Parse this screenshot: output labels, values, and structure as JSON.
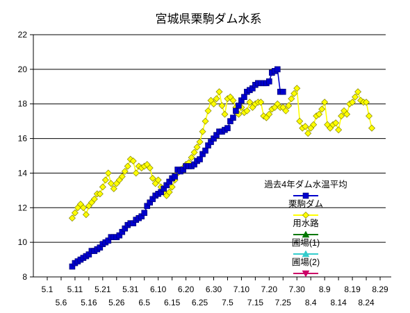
{
  "chart_data": {
    "type": "line",
    "title": "宮城県栗駒ダム水系",
    "xlabel": "",
    "ylabel": "",
    "ylim": [
      8,
      22
    ],
    "yticks": [
      8,
      10,
      12,
      14,
      16,
      18,
      20,
      22
    ],
    "grid": "horizontal",
    "legend_position": "right",
    "x_tick_labels_upper": [
      "5.1",
      "5.11",
      "5.21",
      "5.31",
      "6.10",
      "6.20",
      "6.30",
      "7.10",
      "7.20",
      "7.30",
      "8.9",
      "8.19",
      "8.29"
    ],
    "x_tick_labels_lower": [
      "5.6",
      "5.16",
      "5.26",
      "6.5",
      "6.15",
      "6.25",
      "7.5",
      "7.15",
      "7.25",
      "8.4",
      "8.14",
      "8.24"
    ],
    "x_day_range": [
      0,
      122
    ],
    "colors": {
      "過去4年ダム水温平均": "#0000cc",
      "栗駒ダム": "#ffff00",
      "用水路": "#007700",
      "圃場(1)": "#33cccc",
      "圃場(2)": "#cc0066"
    },
    "series": [
      {
        "name": "過去4年ダム水温平均",
        "marker": "square",
        "points": [
          [
            9,
            8.6
          ],
          [
            10,
            8.8
          ],
          [
            11,
            8.9
          ],
          [
            12,
            9.0
          ],
          [
            13,
            9.1
          ],
          [
            14,
            9.2
          ],
          [
            15,
            9.3
          ],
          [
            16,
            9.5
          ],
          [
            17,
            9.5
          ],
          [
            18,
            9.6
          ],
          [
            19,
            9.7
          ],
          [
            20,
            9.9
          ],
          [
            21,
            10.0
          ],
          [
            22,
            10.1
          ],
          [
            23,
            10.3
          ],
          [
            24,
            10.3
          ],
          [
            25,
            10.3
          ],
          [
            26,
            10.4
          ],
          [
            27,
            10.6
          ],
          [
            28,
            10.8
          ],
          [
            29,
            11.0
          ],
          [
            30,
            11.1
          ],
          [
            31,
            11.1
          ],
          [
            32,
            11.3
          ],
          [
            33,
            11.4
          ],
          [
            34,
            11.5
          ],
          [
            35,
            11.7
          ],
          [
            36,
            12.1
          ],
          [
            37,
            12.3
          ],
          [
            38,
            12.5
          ],
          [
            39,
            12.7
          ],
          [
            40,
            12.8
          ],
          [
            41,
            12.9
          ],
          [
            42,
            13.1
          ],
          [
            43,
            13.3
          ],
          [
            44,
            13.5
          ],
          [
            45,
            13.7
          ],
          [
            46,
            13.8
          ],
          [
            47,
            14.2
          ],
          [
            48,
            14.1
          ],
          [
            49,
            14.2
          ],
          [
            50,
            14.4
          ],
          [
            51,
            14.4
          ],
          [
            52,
            14.4
          ],
          [
            53,
            14.5
          ],
          [
            54,
            14.7
          ],
          [
            55,
            14.8
          ],
          [
            56,
            15.1
          ],
          [
            57,
            15.3
          ],
          [
            58,
            15.6
          ],
          [
            59,
            15.8
          ],
          [
            60,
            16.0
          ],
          [
            61,
            16.2
          ],
          [
            62,
            16.4
          ],
          [
            63,
            16.4
          ],
          [
            64,
            16.5
          ],
          [
            65,
            16.6
          ],
          [
            66,
            17.0
          ],
          [
            67,
            17.2
          ],
          [
            68,
            17.6
          ],
          [
            69,
            17.9
          ],
          [
            70,
            18.2
          ],
          [
            71,
            18.4
          ],
          [
            72,
            18.7
          ],
          [
            73,
            18.8
          ],
          [
            74,
            18.9
          ],
          [
            75,
            19.1
          ],
          [
            76,
            19.2
          ],
          [
            77,
            19.2
          ],
          [
            78,
            19.2
          ],
          [
            79,
            19.2
          ],
          [
            80,
            19.3
          ],
          [
            81,
            19.8
          ],
          [
            82,
            19.9
          ],
          [
            83,
            20.0
          ],
          [
            84,
            18.7
          ],
          [
            85,
            18.7
          ]
        ]
      },
      {
        "name": "栗駒ダム",
        "marker": "diamond",
        "points": [
          [
            9,
            11.4
          ],
          [
            10,
            11.7
          ],
          [
            11,
            12.0
          ],
          [
            12,
            12.2
          ],
          [
            13,
            12.0
          ],
          [
            14,
            11.6
          ],
          [
            15,
            12.1
          ],
          [
            16,
            12.3
          ],
          [
            17,
            12.5
          ],
          [
            18,
            12.8
          ],
          [
            19,
            12.8
          ],
          [
            20,
            13.2
          ],
          [
            21,
            13.6
          ],
          [
            22,
            14.0
          ],
          [
            23,
            13.4
          ],
          [
            24,
            13.1
          ],
          [
            25,
            13.4
          ],
          [
            26,
            13.6
          ],
          [
            27,
            13.8
          ],
          [
            28,
            14.1
          ],
          [
            29,
            14.4
          ],
          [
            30,
            14.8
          ],
          [
            31,
            14.7
          ],
          [
            32,
            14.0
          ],
          [
            33,
            14.4
          ],
          [
            34,
            14.3
          ],
          [
            35,
            14.4
          ],
          [
            36,
            14.5
          ],
          [
            37,
            14.3
          ],
          [
            38,
            13.7
          ],
          [
            39,
            13.4
          ],
          [
            40,
            13.6
          ],
          [
            41,
            13.2
          ],
          [
            42,
            12.9
          ],
          [
            43,
            12.7
          ],
          [
            44,
            12.9
          ],
          [
            45,
            13.2
          ],
          [
            46,
            13.6
          ],
          [
            47,
            14.0
          ],
          [
            48,
            14.2
          ],
          [
            49,
            14.3
          ],
          [
            50,
            14.5
          ],
          [
            51,
            14.6
          ],
          [
            52,
            14.9
          ],
          [
            53,
            15.2
          ],
          [
            54,
            15.5
          ],
          [
            55,
            15.8
          ],
          [
            56,
            16.4
          ],
          [
            57,
            17.0
          ],
          [
            58,
            17.6
          ],
          [
            59,
            18.2
          ],
          [
            60,
            18.0
          ],
          [
            61,
            18.3
          ],
          [
            62,
            18.7
          ],
          [
            63,
            17.9
          ],
          [
            64,
            17.4
          ],
          [
            65,
            18.3
          ],
          [
            66,
            18.4
          ],
          [
            67,
            18.2
          ],
          [
            68,
            17.8
          ],
          [
            69,
            17.4
          ],
          [
            70,
            17.8
          ],
          [
            71,
            17.5
          ],
          [
            72,
            17.6
          ],
          [
            73,
            18.1
          ],
          [
            74,
            17.8
          ],
          [
            75,
            18.0
          ],
          [
            76,
            18.1
          ],
          [
            77,
            18.1
          ],
          [
            78,
            17.3
          ],
          [
            79,
            17.2
          ],
          [
            80,
            17.4
          ],
          [
            81,
            17.7
          ],
          [
            82,
            17.8
          ],
          [
            83,
            18.0
          ],
          [
            84,
            17.8
          ],
          [
            85,
            17.8
          ],
          [
            86,
            17.6
          ],
          [
            87,
            17.9
          ],
          [
            88,
            18.3
          ],
          [
            89,
            18.6
          ],
          [
            90,
            18.9
          ],
          [
            91,
            17.0
          ],
          [
            92,
            16.6
          ],
          [
            93,
            16.7
          ],
          [
            94,
            16.3
          ],
          [
            95,
            16.6
          ],
          [
            96,
            16.8
          ],
          [
            97,
            17.3
          ],
          [
            98,
            17.4
          ],
          [
            99,
            17.7
          ],
          [
            100,
            18.1
          ],
          [
            101,
            16.8
          ],
          [
            102,
            16.6
          ],
          [
            103,
            16.8
          ],
          [
            104,
            16.9
          ],
          [
            105,
            16.5
          ],
          [
            106,
            17.3
          ],
          [
            107,
            17.6
          ],
          [
            108,
            17.4
          ],
          [
            109,
            18.0
          ],
          [
            110,
            18.1
          ],
          [
            111,
            18.4
          ],
          [
            112,
            18.7
          ],
          [
            113,
            18.2
          ],
          [
            114,
            18.1
          ],
          [
            115,
            18.1
          ],
          [
            116,
            17.3
          ],
          [
            117,
            16.6
          ]
        ]
      },
      {
        "name": "用水路",
        "marker": "triangle",
        "points": []
      },
      {
        "name": "圃場(1)",
        "marker": "triangle",
        "points": []
      },
      {
        "name": "圃場(2)",
        "marker": "triangle-down",
        "points": []
      }
    ]
  }
}
